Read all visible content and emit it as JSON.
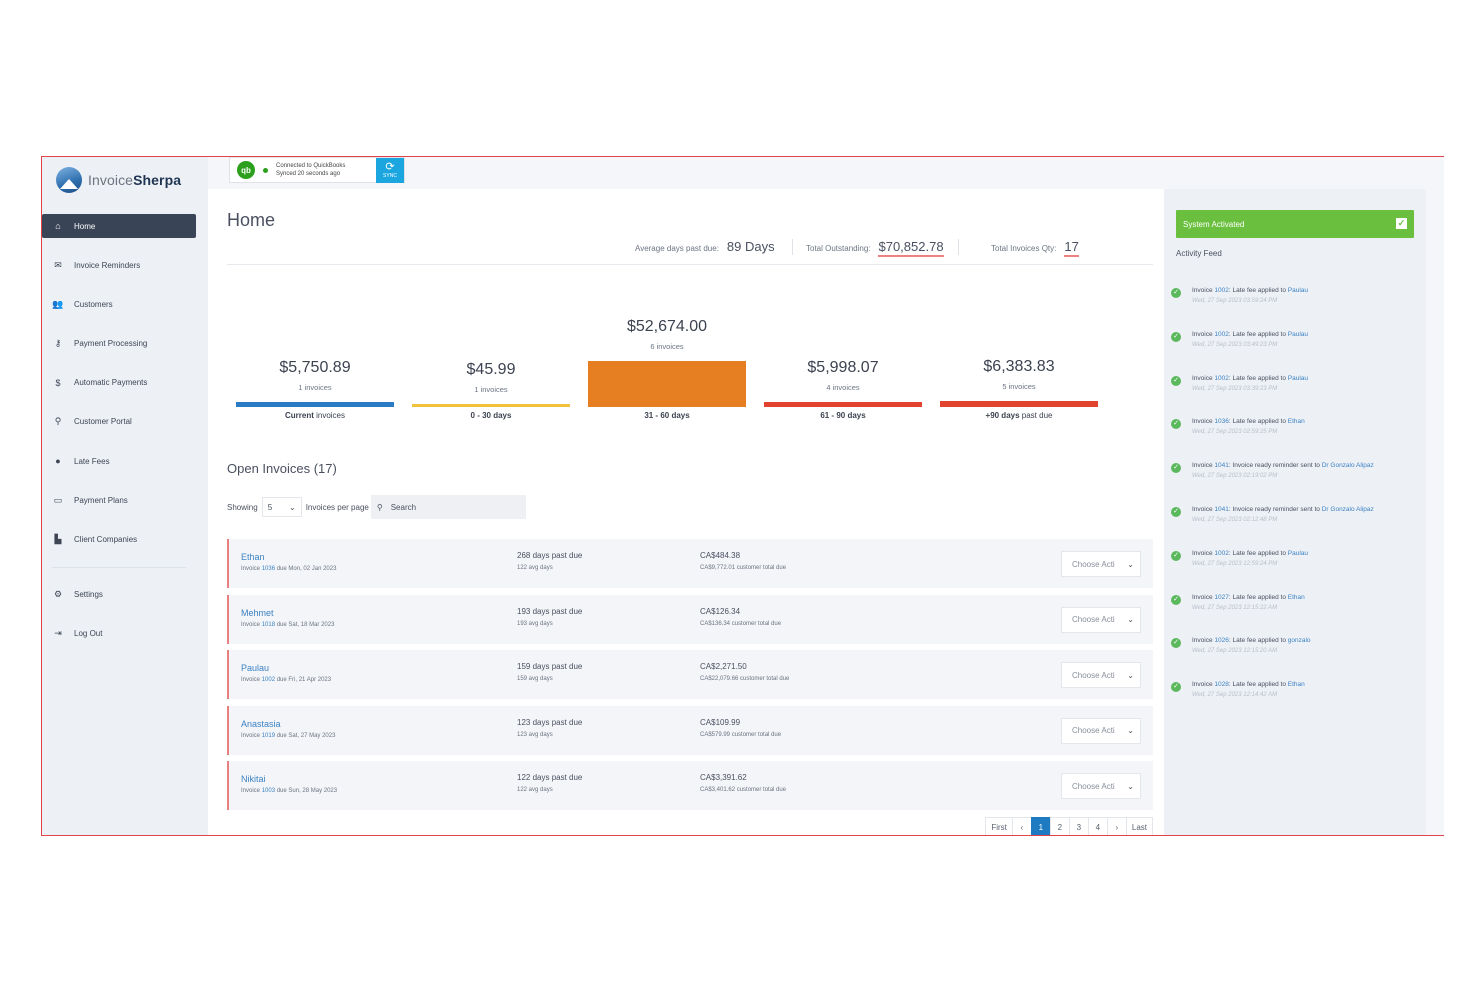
{
  "brand": {
    "name_light": "Invoice",
    "name_bold": "Sherpa"
  },
  "sidebar": {
    "items": [
      {
        "label": "Home",
        "icon": "home-icon",
        "active": true
      },
      {
        "label": "Invoice Reminders",
        "icon": "envelope-icon"
      },
      {
        "label": "Customers",
        "icon": "users-icon"
      },
      {
        "label": "Payment Processing",
        "icon": "key-icon"
      },
      {
        "label": "Automatic Payments",
        "icon": "dollar-icon"
      },
      {
        "label": "Customer Portal",
        "icon": "person-icon"
      },
      {
        "label": "Late Fees",
        "icon": "alert-icon"
      },
      {
        "label": "Payment Plans",
        "icon": "calendar-icon"
      },
      {
        "label": "Client Companies",
        "icon": "building-icon"
      }
    ],
    "bottom": [
      {
        "label": "Settings",
        "icon": "gear-icon"
      },
      {
        "label": "Log Out",
        "icon": "logout-icon"
      }
    ]
  },
  "quickbooks": {
    "logo": "qb",
    "line1": "Connected to QuickBooks",
    "line2": "Synced 20 seconds ago",
    "sync_label": "SYNC"
  },
  "page_title": "Home",
  "stats": {
    "avg_label": "Average days past due:",
    "avg_value": "89 Days",
    "outstanding_label": "Total Outstanding:",
    "outstanding_value": "$70,852.78",
    "qty_label": "Total Invoices Qty:",
    "qty_value": "17"
  },
  "aging": [
    {
      "amount": "$5,750.89",
      "count": "1 invoices",
      "label_bold": "Current",
      "label_rest": " invoices",
      "color": "#2a7ac4",
      "level": 0.1
    },
    {
      "amount": "$45.99",
      "count": "1 invoices",
      "label_bold": "0 - 30 days",
      "label_rest": "",
      "color": "#f2c23c",
      "level": 0.0
    },
    {
      "amount": "$52,674.00",
      "count": "6 invoices",
      "label_bold": "31 - 60 days",
      "label_rest": "",
      "color": "#e57f22",
      "level": 1.0
    },
    {
      "amount": "$5,998.07",
      "count": "4 invoices",
      "label_bold": "61 - 90 days",
      "label_rest": "",
      "color": "#e2432f",
      "level": 0.11
    },
    {
      "amount": "$6,383.83",
      "count": "5 invoices",
      "label_bold": "+90 days",
      "label_rest": " past due",
      "color": "#e2432f",
      "level": 0.12
    }
  ],
  "open_invoices": {
    "title": "Open Invoices (17)",
    "showing_label": "Showing",
    "per_page": "5",
    "per_page_label": "Invoices per page",
    "search_placeholder": "Search",
    "rows": [
      {
        "name": "Ethan",
        "inv_prefix": "Invoice ",
        "inv_no": "1036",
        "due": " due Mon, 02 Jan 2023",
        "days": "268 days past due",
        "avg": "122 avg days",
        "amount": "CA$484.38",
        "total": "CA$9,772.01 customer total due",
        "action": "Choose Acti"
      },
      {
        "name": "Mehmet",
        "inv_prefix": "Invoice ",
        "inv_no": "1018",
        "due": " due Sat, 18 Mar 2023",
        "days": "193 days past due",
        "avg": "193 avg days",
        "amount": "CA$126.34",
        "total": "CA$136.34 customer total due",
        "action": "Choose Acti"
      },
      {
        "name": "Paulau",
        "inv_prefix": "Invoice ",
        "inv_no": "1002",
        "due": " due Fri, 21 Apr 2023",
        "days": "159 days past due",
        "avg": "159 avg days",
        "amount": "CA$2,271.50",
        "total": "CA$22,079.66 customer total due",
        "action": "Choose Acti"
      },
      {
        "name": "Anastasia",
        "inv_prefix": "Invoice ",
        "inv_no": "1019",
        "due": " due Sat, 27 May 2023",
        "days": "123 days past due",
        "avg": "123 avg days",
        "amount": "CA$109.99",
        "total": "CA$579.99 customer total due",
        "action": "Choose Acti"
      },
      {
        "name": "Nikitai",
        "inv_prefix": "Invoice ",
        "inv_no": "1003",
        "due": " due Sun, 28 May 2023",
        "days": "122 days past due",
        "avg": "122 avg days",
        "amount": "CA$3,391.62",
        "total": "CA$3,401.62 customer total due",
        "action": "Choose Acti"
      }
    ]
  },
  "pagination": {
    "first": "First",
    "prev": "‹",
    "pages": [
      "1",
      "2",
      "3",
      "4"
    ],
    "current": "1",
    "next": "›",
    "last": "Last"
  },
  "right_panel": {
    "system_label": "System Activated",
    "feed_title": "Activity Feed",
    "feed": [
      {
        "prefix": "Invoice ",
        "inv": "1002",
        "text": ": Late fee applied to ",
        "who": "Paulau",
        "time": "Wed, 27 Sep 2023 03:59:24 PM"
      },
      {
        "prefix": "Invoice ",
        "inv": "1002",
        "text": ": Late fee applied to ",
        "who": "Paulau",
        "time": "Wed, 27 Sep 2023 03:49:23 PM"
      },
      {
        "prefix": "Invoice ",
        "inv": "1002",
        "text": ": Late fee applied to ",
        "who": "Paulau",
        "time": "Wed, 27 Sep 2023 03:39:23 PM"
      },
      {
        "prefix": "Invoice ",
        "inv": "1036",
        "text": ": Late fee applied to ",
        "who": "Ethan",
        "time": "Wed, 27 Sep 2023 02:59:25 PM"
      },
      {
        "prefix": "Invoice ",
        "inv": "1041",
        "text": ": Invoice ready reminder sent to ",
        "who": "Dr Gonzalo Alipaz",
        "time": "Wed, 27 Sep 2023 02:19:02 PM"
      },
      {
        "prefix": "Invoice ",
        "inv": "1041",
        "text": ": Invoice ready reminder sent to ",
        "who": "Dr Gonzalo Alipaz",
        "time": "Wed, 27 Sep 2023 02:12:48 PM"
      },
      {
        "prefix": "Invoice ",
        "inv": "1002",
        "text": ": Late fee applied to ",
        "who": "Paulau",
        "time": "Wed, 27 Sep 2023 12:59:24 PM"
      },
      {
        "prefix": "Invoice ",
        "inv": "1027",
        "text": ": Late fee applied to ",
        "who": "Ethan",
        "time": "Wed, 27 Sep 2023 12:15:22 AM"
      },
      {
        "prefix": "Invoice ",
        "inv": "1026",
        "text": ": Late fee applied to ",
        "who": "gonzalo",
        "time": "Wed, 27 Sep 2023 12:15:20 AM"
      },
      {
        "prefix": "Invoice ",
        "inv": "1028",
        "text": ": Late fee applied to ",
        "who": "Ethan",
        "time": "Wed, 27 Sep 2023 12:14:42 AM"
      }
    ]
  }
}
